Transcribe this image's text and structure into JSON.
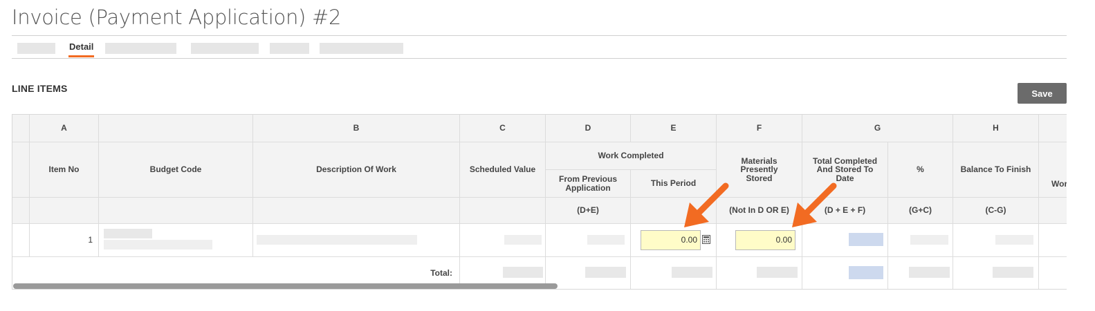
{
  "page": {
    "title": "Invoice (Payment Application) #2"
  },
  "tabs": {
    "active_label": "Detail"
  },
  "section": {
    "title": "LINE ITEMS",
    "save_label": "Save"
  },
  "columns": {
    "letters": [
      "A",
      "B",
      "C",
      "D",
      "E",
      "F",
      "G",
      "H"
    ],
    "item_no": "Item No",
    "budget_code": "Budget Code",
    "description": "Description Of Work",
    "scheduled_value": "Scheduled Value",
    "work_completed": "Work Completed",
    "from_previous": "From Previous Application",
    "this_period": "This Period",
    "materials": "Materials Presently Stored",
    "total_completed": "Total Completed And Stored To Date",
    "percent": "%",
    "balance": "Balance To Finish",
    "partial_next": "Wor",
    "formula_d": "(D+E)",
    "formula_f": "(Not In D OR E)",
    "formula_g": "(D + E + F)",
    "formula_pct": "(G+C)",
    "formula_h": "(C-G)"
  },
  "rows": [
    {
      "item_no": "1",
      "this_period": "0.00",
      "materials": "0.00"
    }
  ],
  "totals": {
    "label": "Total:"
  },
  "colors": {
    "accent": "#f26b22",
    "input_bg": "#fffcc8",
    "save_bg": "#6b6b6b"
  }
}
